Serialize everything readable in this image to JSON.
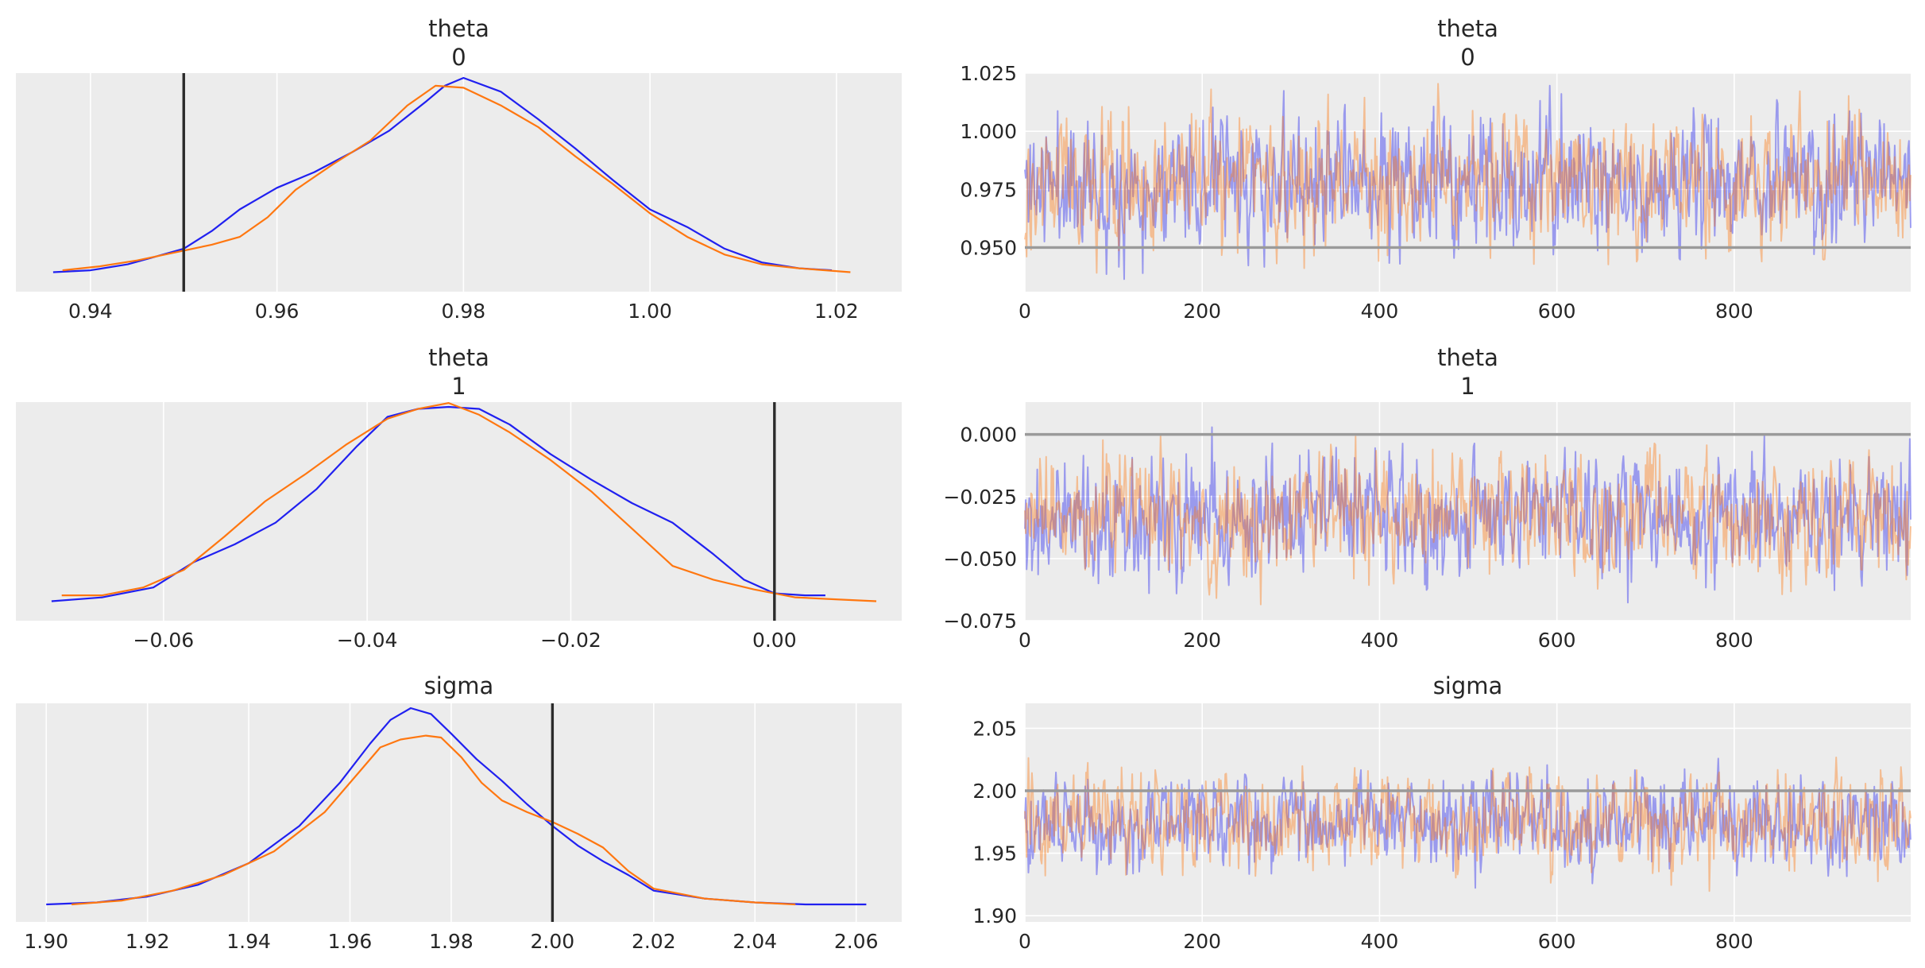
{
  "chart_data": [
    {
      "type": "kde",
      "title": "theta\n0",
      "xlim": [
        0.932,
        1.027
      ],
      "xticks": [
        0.94,
        0.96,
        0.98,
        1.0,
        1.02
      ],
      "xtick_labels": [
        "0.94",
        "0.96",
        "0.98",
        "1.00",
        "1.02"
      ],
      "ref_line": {
        "x": 0.95
      },
      "series": [
        {
          "color": "#2020f0",
          "x": [
            0.936,
            0.94,
            0.944,
            0.947,
            0.95,
            0.953,
            0.956,
            0.96,
            0.964,
            0.968,
            0.972,
            0.976,
            0.978,
            0.98,
            0.984,
            0.988,
            0.992,
            0.996,
            1.0,
            1.004,
            1.008,
            1.012,
            1.016,
            1.0195
          ],
          "y": [
            0.01,
            0.02,
            0.05,
            0.09,
            0.13,
            0.22,
            0.33,
            0.44,
            0.52,
            0.62,
            0.73,
            0.88,
            0.96,
            1.0,
            0.93,
            0.79,
            0.64,
            0.48,
            0.33,
            0.24,
            0.13,
            0.06,
            0.03,
            0.02
          ]
        },
        {
          "color": "#ff7710",
          "x": [
            0.937,
            0.941,
            0.945,
            0.949,
            0.953,
            0.956,
            0.959,
            0.962,
            0.966,
            0.97,
            0.974,
            0.977,
            0.98,
            0.984,
            0.988,
            0.992,
            0.996,
            1.0,
            1.004,
            1.008,
            1.012,
            1.016,
            1.0215
          ],
          "y": [
            0.02,
            0.04,
            0.07,
            0.11,
            0.15,
            0.19,
            0.29,
            0.43,
            0.56,
            0.68,
            0.86,
            0.96,
            0.95,
            0.86,
            0.75,
            0.6,
            0.46,
            0.31,
            0.19,
            0.1,
            0.05,
            0.03,
            0.01
          ]
        }
      ]
    },
    {
      "type": "line",
      "title": "theta\n0",
      "xlim": [
        0,
        999
      ],
      "ylim": [
        0.931,
        1.025
      ],
      "xticks": [
        0,
        200,
        400,
        600,
        800
      ],
      "xtick_labels": [
        "0",
        "200",
        "400",
        "600",
        "800"
      ],
      "yticks": [
        0.95,
        0.975,
        1.0,
        1.025
      ],
      "ytick_labels": [
        "0.950",
        "0.975",
        "1.000",
        "1.025"
      ],
      "ref_line": {
        "y": 0.95
      },
      "trace": {
        "n": 1000,
        "center": 0.978,
        "sd": 0.014,
        "lo": 0.935,
        "hi": 1.021
      },
      "series": [
        {
          "color": "#2020f0",
          "alpha": 0.4,
          "seed": 11
        },
        {
          "color": "#ff7710",
          "alpha": 0.4,
          "seed": 29
        }
      ]
    },
    {
      "type": "kde",
      "title": "theta\n1",
      "xlim": [
        -0.0745,
        0.0125
      ],
      "xticks": [
        -0.06,
        -0.04,
        -0.02,
        0.0
      ],
      "xtick_labels": [
        "−0.06",
        "−0.04",
        "−0.02",
        "0.00"
      ],
      "ref_line": {
        "x": 0.0
      },
      "series": [
        {
          "color": "#2020f0",
          "x": [
            -0.071,
            -0.066,
            -0.061,
            -0.057,
            -0.053,
            -0.049,
            -0.045,
            -0.041,
            -0.038,
            -0.035,
            -0.032,
            -0.029,
            -0.026,
            -0.022,
            -0.018,
            -0.014,
            -0.01,
            -0.006,
            -0.003,
            0.0,
            0.003,
            0.005
          ],
          "y": [
            0.01,
            0.03,
            0.08,
            0.21,
            0.3,
            0.41,
            0.58,
            0.8,
            0.95,
            0.99,
            1.0,
            0.99,
            0.91,
            0.76,
            0.63,
            0.51,
            0.41,
            0.25,
            0.12,
            0.05,
            0.04,
            0.04
          ]
        },
        {
          "color": "#ff7710",
          "x": [
            -0.07,
            -0.066,
            -0.062,
            -0.058,
            -0.054,
            -0.05,
            -0.046,
            -0.042,
            -0.038,
            -0.035,
            -0.032,
            -0.029,
            -0.026,
            -0.022,
            -0.018,
            -0.014,
            -0.01,
            -0.006,
            -0.002,
            0.002,
            0.006,
            0.01
          ],
          "y": [
            0.04,
            0.04,
            0.08,
            0.17,
            0.34,
            0.52,
            0.66,
            0.81,
            0.94,
            0.99,
            1.02,
            0.96,
            0.87,
            0.73,
            0.57,
            0.38,
            0.19,
            0.12,
            0.07,
            0.03,
            0.02,
            0.01
          ]
        }
      ]
    },
    {
      "type": "line",
      "title": "theta\n1",
      "xlim": [
        0,
        999
      ],
      "ylim": [
        -0.075,
        0.013
      ],
      "xticks": [
        0,
        200,
        400,
        600,
        800
      ],
      "xtick_labels": [
        "0",
        "200",
        "400",
        "600",
        "800"
      ],
      "yticks": [
        -0.075,
        -0.05,
        -0.025,
        0.0
      ],
      "ytick_labels": [
        "−0.075",
        "−0.050",
        "−0.025",
        "0.000"
      ],
      "ref_line": {
        "y": 0.0
      },
      "trace": {
        "n": 1000,
        "center": -0.033,
        "sd": 0.012,
        "lo": -0.073,
        "hi": 0.01
      },
      "series": [
        {
          "color": "#2020f0",
          "alpha": 0.4,
          "seed": 47
        },
        {
          "color": "#ff7710",
          "alpha": 0.4,
          "seed": 83
        }
      ]
    },
    {
      "type": "kde",
      "title": "sigma",
      "xlim": [
        1.894,
        2.069
      ],
      "xticks": [
        1.9,
        1.92,
        1.94,
        1.96,
        1.98,
        2.0,
        2.02,
        2.04,
        2.06
      ],
      "xtick_labels": [
        "1.90",
        "1.92",
        "1.94",
        "1.96",
        "1.98",
        "2.00",
        "2.02",
        "2.04",
        "2.06"
      ],
      "ref_line": {
        "x": 2.0
      },
      "series": [
        {
          "color": "#2020f0",
          "x": [
            1.9,
            1.91,
            1.92,
            1.93,
            1.94,
            1.95,
            1.958,
            1.964,
            1.968,
            1.972,
            1.976,
            1.98,
            1.985,
            1.99,
            1.995,
            2.0,
            2.005,
            2.01,
            2.015,
            2.02,
            2.03,
            2.04,
            2.05,
            2.062
          ],
          "y": [
            0.0,
            0.01,
            0.04,
            0.1,
            0.21,
            0.4,
            0.62,
            0.82,
            0.94,
            1.0,
            0.97,
            0.87,
            0.74,
            0.63,
            0.51,
            0.4,
            0.3,
            0.22,
            0.15,
            0.07,
            0.03,
            0.01,
            0.0,
            0.0
          ]
        },
        {
          "color": "#ff7710",
          "x": [
            1.905,
            1.915,
            1.925,
            1.935,
            1.945,
            1.955,
            1.962,
            1.966,
            1.97,
            1.975,
            1.978,
            1.982,
            1.986,
            1.99,
            1.995,
            2.0,
            2.005,
            2.01,
            2.015,
            2.02,
            2.03,
            2.04,
            2.048
          ],
          "y": [
            0.0,
            0.02,
            0.07,
            0.15,
            0.27,
            0.47,
            0.68,
            0.8,
            0.84,
            0.86,
            0.85,
            0.75,
            0.62,
            0.53,
            0.47,
            0.42,
            0.36,
            0.29,
            0.17,
            0.08,
            0.03,
            0.01,
            0.0
          ]
        }
      ]
    },
    {
      "type": "line",
      "title": "sigma",
      "xlim": [
        0,
        999
      ],
      "ylim": [
        1.895,
        2.07
      ],
      "xticks": [
        0,
        200,
        400,
        600,
        800
      ],
      "xtick_labels": [
        "0",
        "200",
        "400",
        "600",
        "800"
      ],
      "yticks": [
        1.9,
        1.95,
        2.0,
        2.05
      ],
      "ytick_labels": [
        "1.90",
        "1.95",
        "2.00",
        "2.05"
      ],
      "ref_line": {
        "y": 2.0
      },
      "trace": {
        "n": 1000,
        "center": 1.975,
        "sd": 0.018,
        "lo": 1.9,
        "hi": 2.062
      },
      "series": [
        {
          "color": "#2020f0",
          "alpha": 0.4,
          "seed": 101
        },
        {
          "color": "#ff7710",
          "alpha": 0.4,
          "seed": 197
        }
      ]
    }
  ],
  "colors": {
    "axes_background": "#ececec",
    "grid": "#ffffff",
    "ref_line_kde": "#2b2b2b",
    "ref_line_trace": "#9a9a9a",
    "chain_0": "#2020f0",
    "chain_1": "#ff7710"
  }
}
